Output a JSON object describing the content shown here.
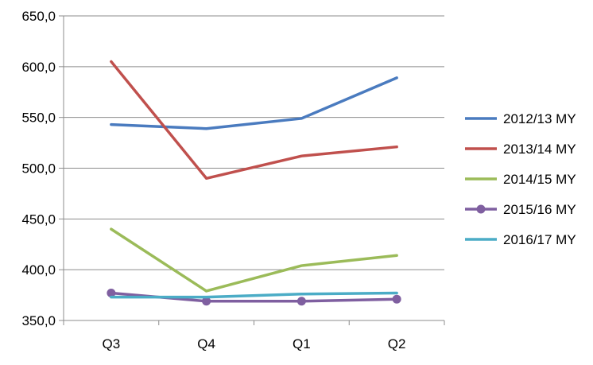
{
  "chart_data": {
    "type": "line",
    "title": "",
    "xlabel": "",
    "ylabel": "",
    "categories": [
      "Q3",
      "Q4",
      "Q1",
      "Q2"
    ],
    "ylim": [
      350,
      650
    ],
    "yticks": [
      350,
      400,
      450,
      500,
      550,
      600,
      650
    ],
    "ytick_labels": [
      "350,0",
      "400,0",
      "450,0",
      "500,0",
      "550,0",
      "600,0",
      "650,0"
    ],
    "grid": "horizontal",
    "legend_position": "right",
    "series": [
      {
        "name": "2012/13 MY",
        "values": [
          543,
          539,
          549,
          589
        ],
        "color": "#4a7bbf",
        "marker": false
      },
      {
        "name": "2013/14 MY",
        "values": [
          605,
          490,
          512,
          521
        ],
        "color": "#c0504d",
        "marker": false
      },
      {
        "name": "2014/15 MY",
        "values": [
          440,
          379,
          404,
          414
        ],
        "color": "#9bbb59",
        "marker": false
      },
      {
        "name": "2015/16 MY",
        "values": [
          377,
          369,
          369,
          371
        ],
        "color": "#7f5fa0",
        "marker": true
      },
      {
        "name": "2016/17 MY",
        "values": [
          373,
          373,
          376,
          377
        ],
        "color": "#4bacc6",
        "marker": false
      }
    ]
  }
}
